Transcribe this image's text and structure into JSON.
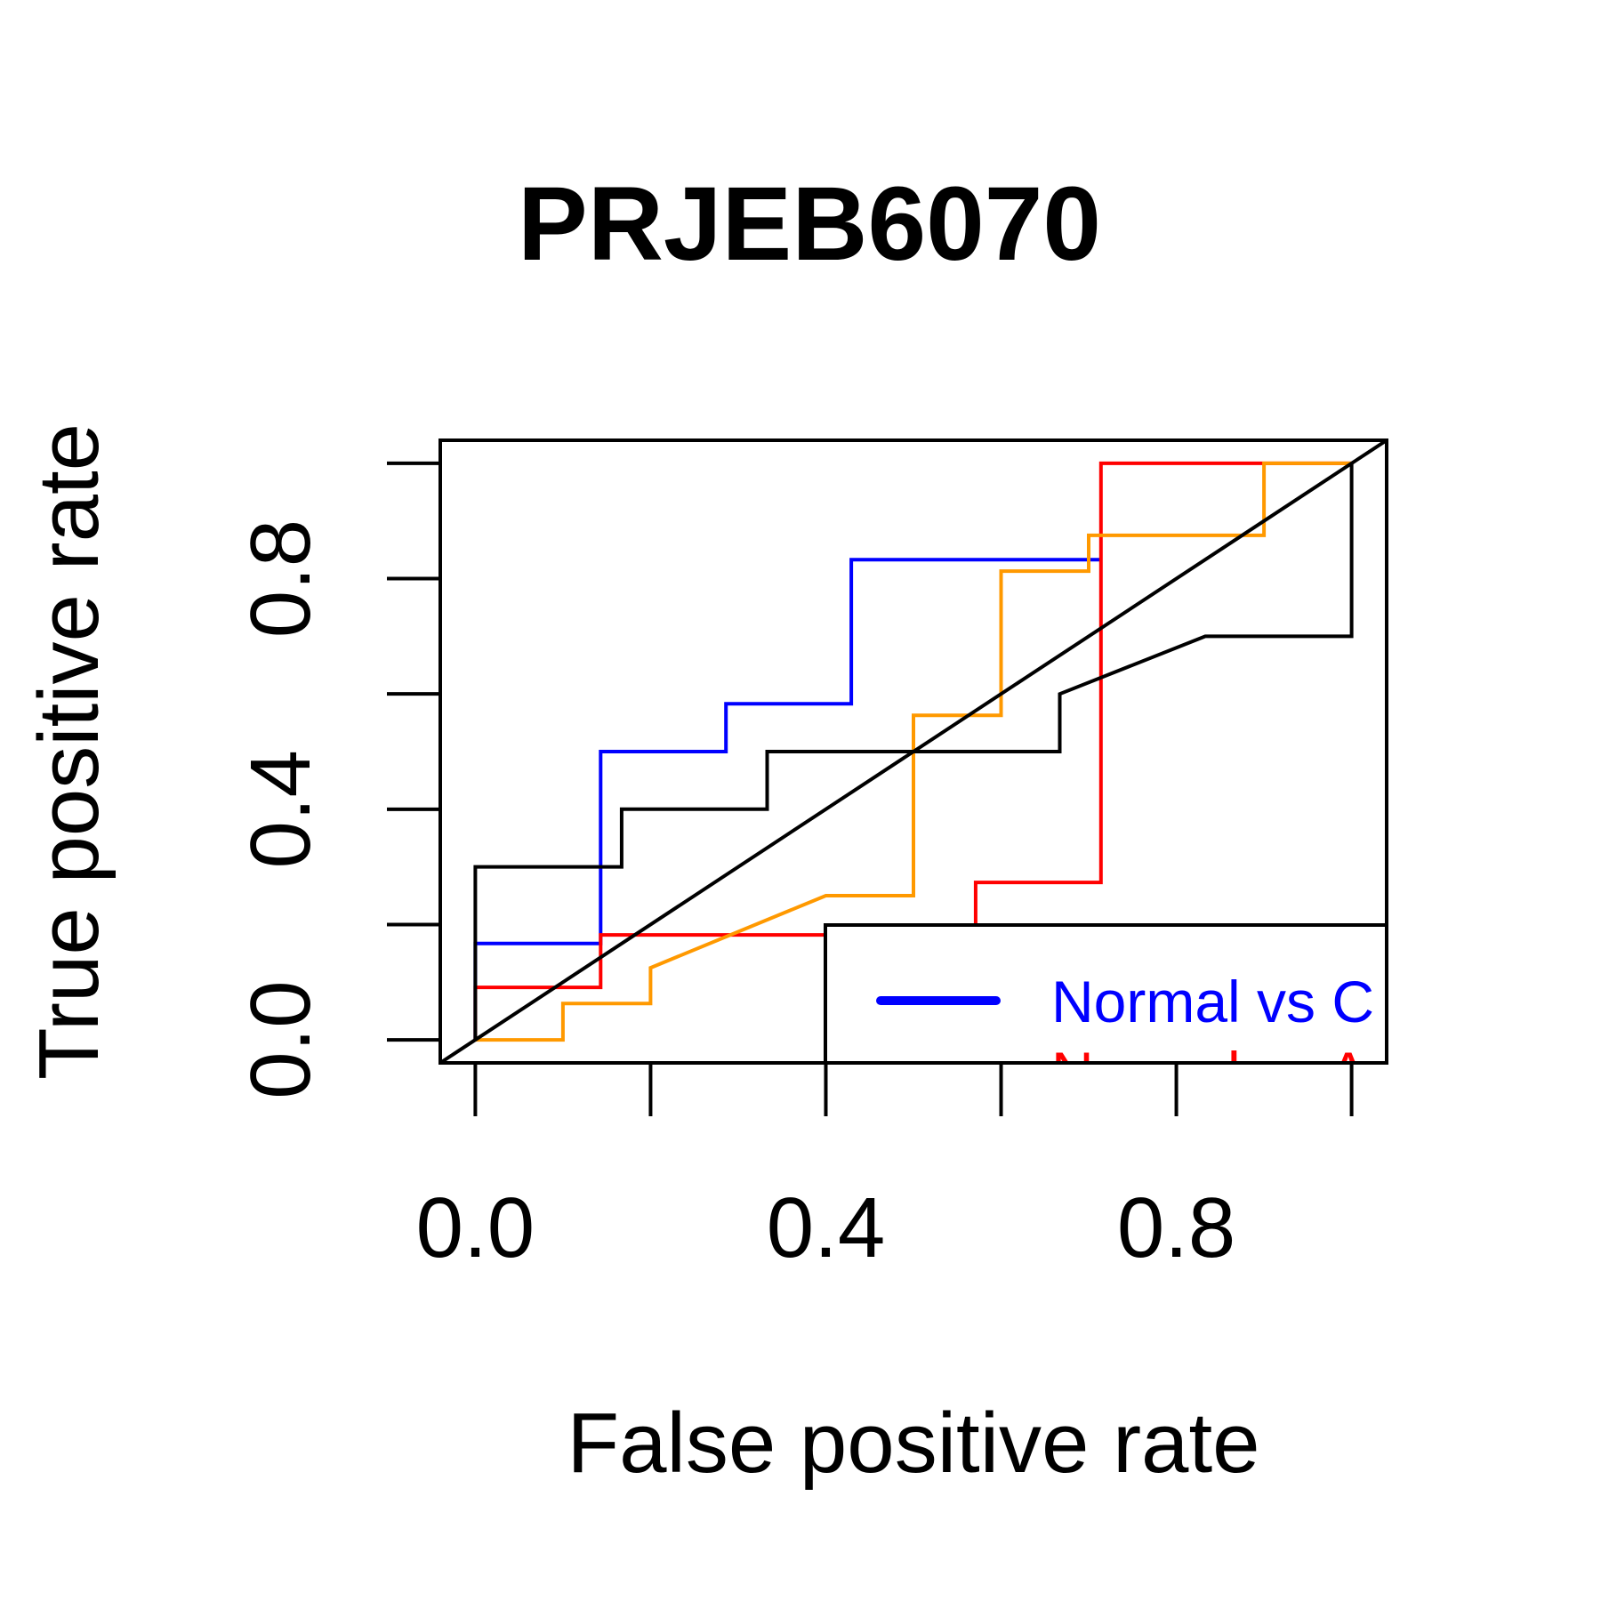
{
  "chart_data": {
    "type": "line",
    "title": "PRJEB6070",
    "xlabel": "False positive rate",
    "ylabel": "True positive rate",
    "xlim": [
      -0.04,
      1.04
    ],
    "ylim": [
      -0.04,
      1.04
    ],
    "x_ticks": [
      0.0,
      0.2,
      0.4,
      0.6,
      0.8,
      1.0
    ],
    "x_tick_labels": [
      "0.0",
      "",
      "0.4",
      "",
      "0.8",
      ""
    ],
    "y_ticks": [
      0.0,
      0.2,
      0.4,
      0.6,
      0.8,
      1.0
    ],
    "y_tick_labels": [
      "0.0",
      "",
      "0.4",
      "",
      "0.8",
      ""
    ],
    "grid": false,
    "legend_position": "bottom-right",
    "series": [
      {
        "name": "Normal vs C",
        "color": "#0000ff",
        "x": [
          0.0,
          0.0,
          0.143,
          0.143,
          0.286,
          0.286,
          0.429,
          0.429,
          0.714
        ],
        "y": [
          0.0,
          0.167,
          0.167,
          0.5,
          0.5,
          0.583,
          0.583,
          0.833,
          0.833
        ]
      },
      {
        "name": "Normal vs A",
        "color": "#ff0000",
        "x": [
          0.0,
          0.0,
          0.143,
          0.143,
          0.571,
          0.571,
          0.714,
          0.714,
          1.0
        ],
        "y": [
          0.0,
          0.091,
          0.091,
          0.182,
          0.182,
          0.273,
          0.273,
          1.0,
          1.0
        ]
      },
      {
        "color": "#ff9900",
        "x": [
          0.0,
          0.1,
          0.1,
          0.2,
          0.2,
          0.4,
          0.5,
          0.5,
          0.6,
          0.6,
          0.7,
          0.7,
          0.9,
          0.9,
          1.0
        ],
        "y": [
          0.0,
          0.0,
          0.063,
          0.063,
          0.125,
          0.25,
          0.25,
          0.563,
          0.563,
          0.813,
          0.813,
          0.875,
          0.875,
          1.0,
          1.0
        ]
      },
      {
        "color": "#000000",
        "x": [
          0.0,
          0.0,
          0.167,
          0.167,
          0.333,
          0.333,
          0.667,
          0.667,
          0.833,
          1.0,
          1.0
        ],
        "y": [
          0.0,
          0.3,
          0.3,
          0.4,
          0.4,
          0.5,
          0.5,
          0.6,
          0.7,
          0.7,
          1.0
        ]
      }
    ],
    "reference_line": {
      "x": [
        -0.04,
        1.04
      ],
      "y": [
        -0.04,
        1.04
      ],
      "color": "#000000"
    }
  }
}
